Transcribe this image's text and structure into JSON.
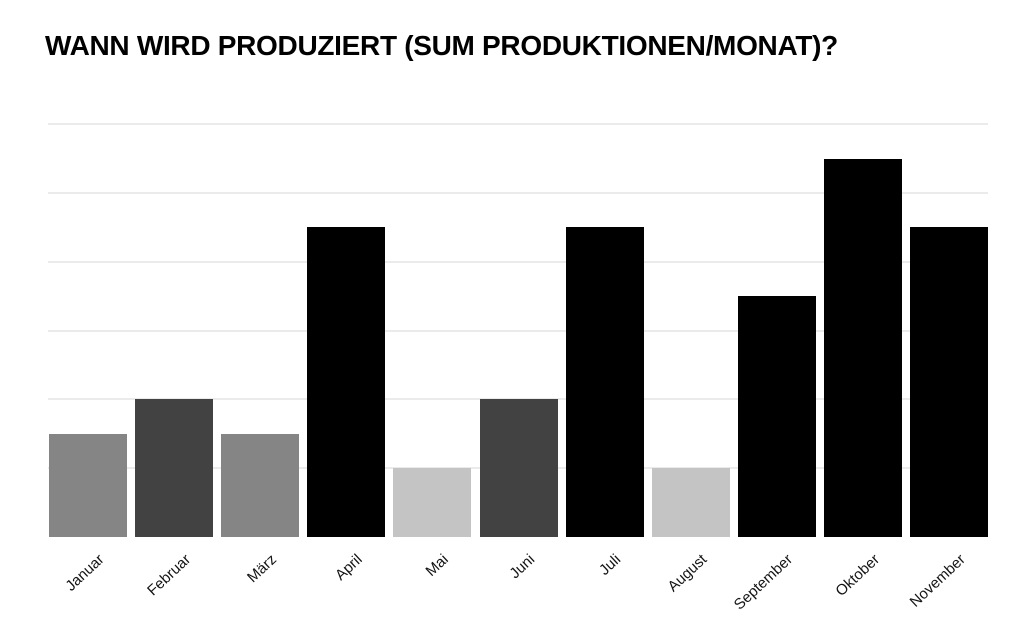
{
  "chart_data": {
    "type": "bar",
    "title": "WANN WIRD PRODUZIERT (SUM PRODUKTIONEN/MONAT)?",
    "categories": [
      "Januar",
      "Februar",
      "März",
      "April",
      "Mai",
      "Juni",
      "Juli",
      "August",
      "September",
      "Oktober",
      "November"
    ],
    "values": [
      3,
      4,
      3,
      9,
      2,
      4,
      9,
      2,
      7,
      11,
      9
    ],
    "bar_colors": [
      "#858585",
      "#424242",
      "#858585",
      "#000000",
      "#c4c4c4",
      "#424242",
      "#000000",
      "#c4c4c4",
      "#000000",
      "#000000",
      "#000000"
    ],
    "xlabel": "",
    "ylabel": "",
    "ylim": [
      0,
      12
    ],
    "gridlines_y": [
      2,
      4,
      6,
      8,
      10,
      12
    ],
    "grid": true,
    "legend_position": "none",
    "y_axis_labels_visible": false,
    "x_label_rotation_deg": -43,
    "background_color": "#ffffff",
    "gridline_color": "#ebebeb",
    "axis_label_color": "#141414",
    "title_color": "#000000"
  }
}
